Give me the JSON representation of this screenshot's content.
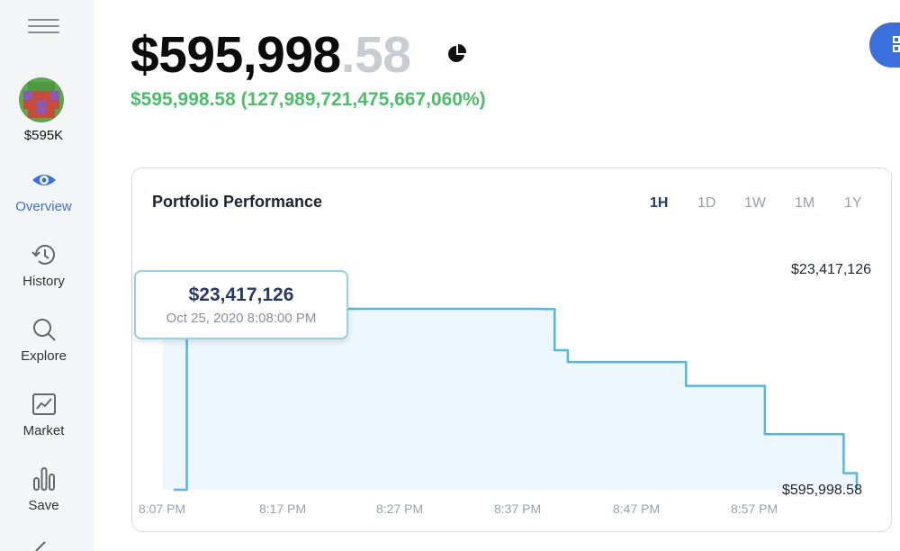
{
  "sidebar": {
    "balance": "$595K",
    "items": [
      {
        "label": "Overview",
        "icon": "eye-icon",
        "active": true
      },
      {
        "label": "History",
        "icon": "history-icon",
        "active": false
      },
      {
        "label": "Explore",
        "icon": "search-icon",
        "active": false
      },
      {
        "label": "Market",
        "icon": "chart-icon",
        "active": false
      },
      {
        "label": "Save",
        "icon": "bar-chart-icon",
        "active": false
      }
    ]
  },
  "header": {
    "balance_main": "$595,998",
    "balance_cents": ".58",
    "change": "$595,998.58 (127,989,721,475,667,060%)"
  },
  "card": {
    "title": "Portfolio Performance",
    "tabs": [
      "1H",
      "1D",
      "1W",
      "1M",
      "1Y"
    ],
    "active_tab": "1H",
    "max_label": "$23,417,126",
    "min_label": "$595,998.58",
    "tooltip": {
      "value": "$23,417,126",
      "date": "Oct 25, 2020 8:08:00 PM"
    }
  },
  "colors": {
    "accent": "#3b6fdb",
    "positive": "#4cbe6a",
    "line": "#55b6e3",
    "fill": "#eef7fd"
  },
  "chart_data": {
    "type": "line",
    "x_tick_labels": [
      "8:07 PM",
      "8:17 PM",
      "8:27 PM",
      "8:37 PM",
      "8:47 PM",
      "8:57 PM"
    ],
    "x": [
      "8:07",
      "8:08",
      "8:35",
      "8:36",
      "8:37",
      "8:46",
      "8:52",
      "8:58",
      "8:59"
    ],
    "values": [
      595998.58,
      23417126,
      23390000,
      18200000,
      16700000,
      13700000,
      7600000,
      2700000,
      595998.58
    ],
    "ylim": [
      595998.58,
      23417126
    ],
    "grid": false
  }
}
